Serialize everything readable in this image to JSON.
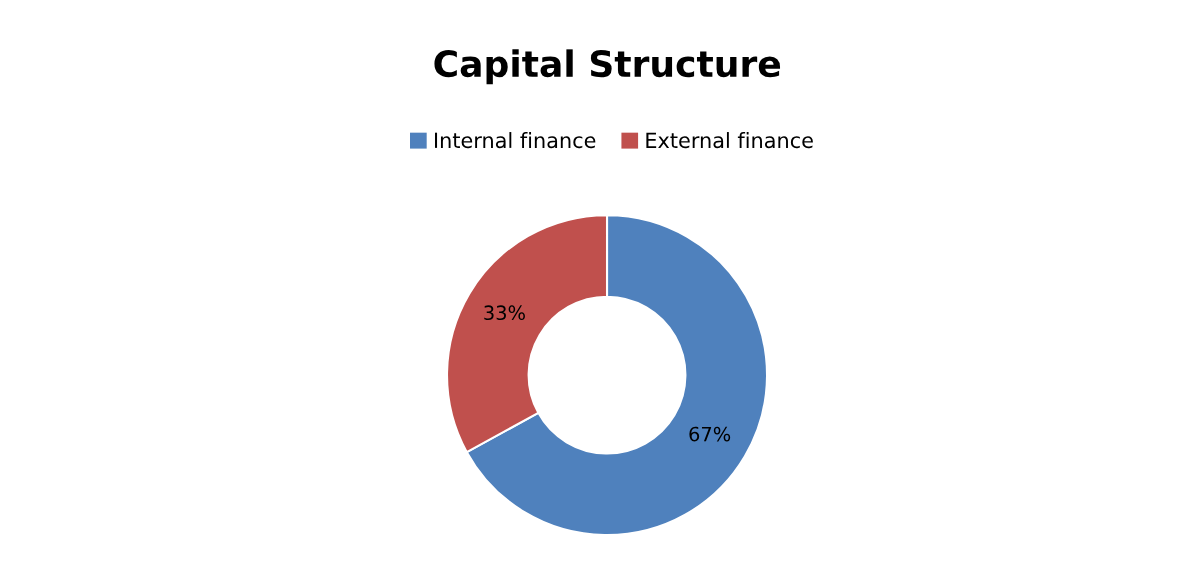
{
  "chart_data": {
    "type": "donut",
    "title": "Capital Structure",
    "categories": [
      "Internal finance",
      "External finance"
    ],
    "values": [
      67,
      33
    ],
    "colors": [
      "#4f81bd",
      "#c0504d"
    ],
    "value_labels": [
      "67%",
      "33%"
    ],
    "legend": "top"
  }
}
